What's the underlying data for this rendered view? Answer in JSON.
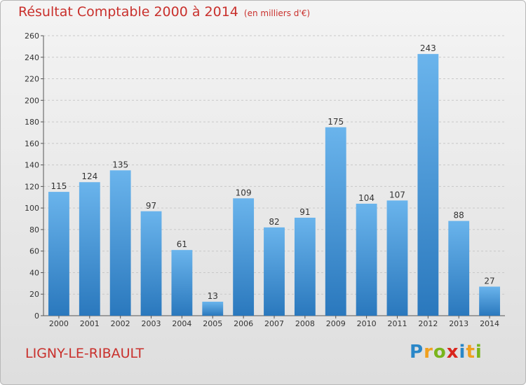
{
  "title": "Résultat Comptable 2000 à 2014",
  "subtitle": "(en milliers d'€)",
  "commune": "LIGNY-LE-RIBAULT",
  "logo": {
    "text": "Proxiti",
    "letters": [
      "P",
      "r",
      "o",
      "x",
      "i",
      "t",
      "i"
    ],
    "colors": [
      "#2a87c8",
      "#f0a01e",
      "#7ab51d",
      "#d9251d",
      "#2a87c8",
      "#f0a01e",
      "#7ab51d"
    ]
  },
  "colors": {
    "bar_top": "#6ab4ec",
    "bar_bottom": "#2a78bd",
    "title": "#c9302c"
  },
  "chart_data": {
    "type": "bar",
    "title": "Résultat Comptable 2000 à 2014",
    "subtitle": "(en milliers d'€)",
    "categories": [
      "2000",
      "2001",
      "2002",
      "2003",
      "2004",
      "2005",
      "2006",
      "2007",
      "2008",
      "2009",
      "2010",
      "2011",
      "2012",
      "2013",
      "2014"
    ],
    "values": [
      115,
      124,
      135,
      97,
      61,
      13,
      109,
      82,
      91,
      175,
      104,
      107,
      243,
      88,
      27
    ],
    "ylim": [
      0,
      260
    ],
    "yticks": [
      0,
      20,
      40,
      60,
      80,
      100,
      120,
      140,
      160,
      180,
      200,
      220,
      240,
      260
    ],
    "grid": true,
    "show_value_labels": true
  }
}
